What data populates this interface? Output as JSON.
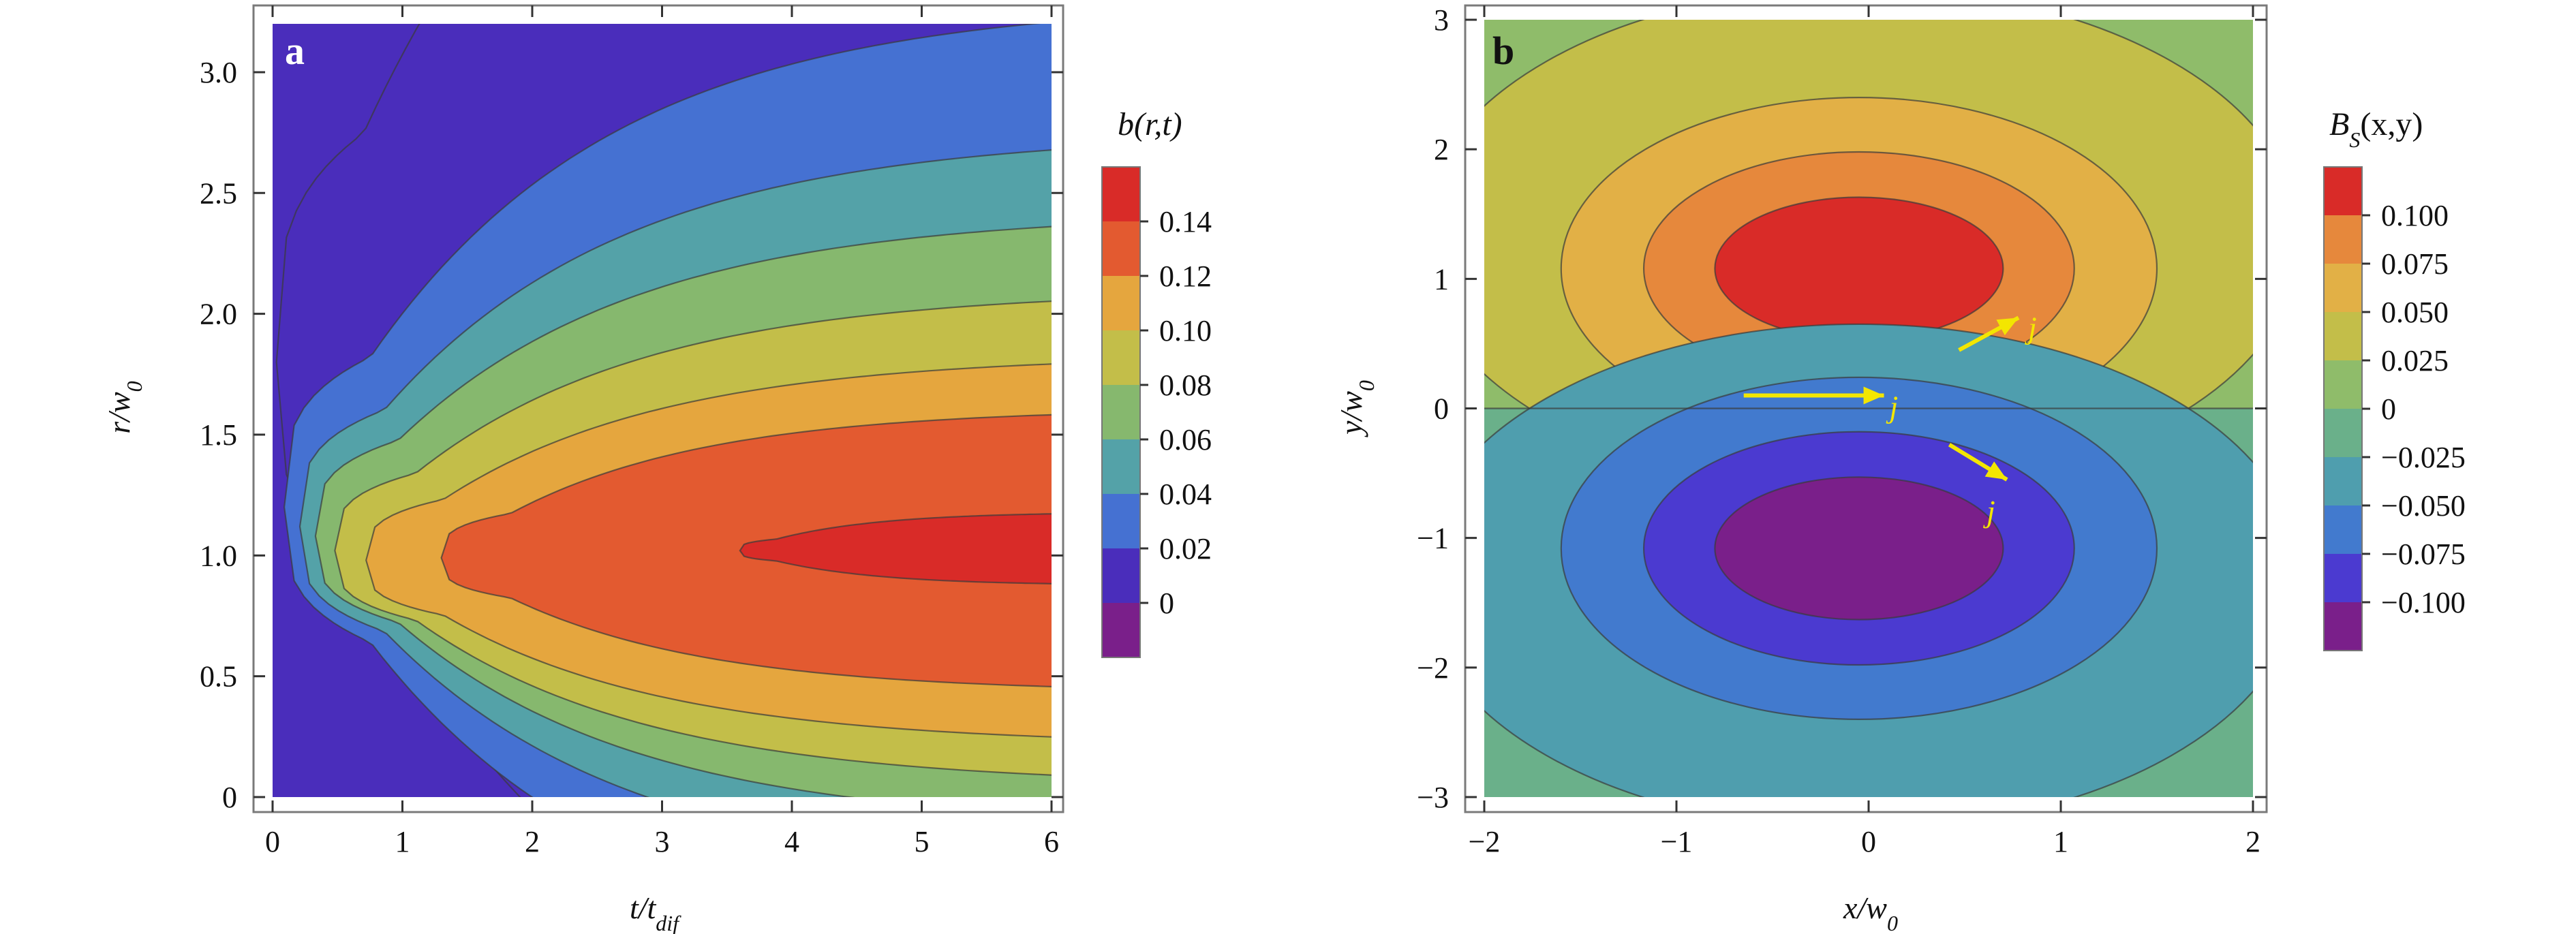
{
  "chart_data": [
    {
      "type": "contour",
      "panel_label": "a",
      "xlabel": "t/t",
      "xlabel_sub": "dif",
      "ylabel": "r/w",
      "ylabel_sub": "0",
      "xlim": [
        0,
        6
      ],
      "ylim": [
        0,
        3.2
      ],
      "xticks": [
        "0",
        "1",
        "2",
        "3",
        "4",
        "5",
        "6"
      ],
      "xtick_values": [
        0,
        1,
        2,
        3,
        4,
        5,
        6
      ],
      "yticks": [
        "0",
        "0.5",
        "1.0",
        "1.5",
        "2.0",
        "2.5",
        "3.0"
      ],
      "ytick_values": [
        0,
        0.5,
        1.0,
        1.5,
        2.0,
        2.5,
        3.0
      ],
      "colorbar_title": "b(r,t)",
      "colorbar_labels": [
        "0.14",
        "0.12",
        "0.10",
        "0.08",
        "0.06",
        "0.04",
        "0.02",
        "0"
      ],
      "colorbar_colors": [
        "#d92b28",
        "#e35a30",
        "#e5a63e",
        "#c3be49",
        "#86b86e",
        "#54a2a8",
        "#4571d2",
        "#4a2dbb",
        "#7a1f8a"
      ],
      "function": "b(r,t) peaks ~0.15 near r/w0 = 1, increasing with t",
      "boundaries": [
        {
          "level": 0.14,
          "r_center": 1.02,
          "half_width": 0.16,
          "t_start": 3.6
        },
        {
          "level": 0.12,
          "r_center": 0.99,
          "half_width": 0.62,
          "t_start": 1.3
        },
        {
          "level": 0.1,
          "r_center": 0.98,
          "half_width": 0.85,
          "t_start": 0.72
        },
        {
          "level": 0.08,
          "r_center": 1.02,
          "half_width": 1.08,
          "t_start": 0.48
        },
        {
          "level": 0.06,
          "r_center": 1.08,
          "half_width": 1.34,
          "t_start": 0.33
        },
        {
          "level": 0.04,
          "r_center": 1.12,
          "half_width": 1.63,
          "t_start": 0.21
        },
        {
          "level": 0.02,
          "r_center": 1.2,
          "half_width": 2.1,
          "t_start": 0.09
        },
        {
          "level": 0.0,
          "r_center": 1.8,
          "half_width": 3.2,
          "t_start": 0.03
        }
      ]
    },
    {
      "type": "contour",
      "panel_label": "b",
      "xlabel": "x/w",
      "xlabel_sub": "0",
      "ylabel": "y/w",
      "ylabel_sub": "0",
      "xlim": [
        -2,
        2
      ],
      "ylim": [
        -3,
        3
      ],
      "xticks": [
        "−2",
        "−1",
        "0",
        "1",
        "2"
      ],
      "xtick_values": [
        -2,
        -1,
        0,
        1,
        2
      ],
      "yticks": [
        "−3",
        "−2",
        "−1",
        "0",
        "1",
        "2",
        "3"
      ],
      "ytick_values": [
        -3,
        -2,
        -1,
        0,
        1,
        2,
        3
      ],
      "colorbar_title": "B",
      "colorbar_title_sub": "S",
      "colorbar_title_args": "(x,y)",
      "colorbar_labels": [
        "0.100",
        "0.075",
        "0.050",
        "0.025",
        "0",
        "−0.025",
        "−0.050",
        "−0.075",
        "−0.100"
      ],
      "colorbar_colors": [
        "#d92b28",
        "#e6883c",
        "#e2b046",
        "#c3be49",
        "#8fbc6a",
        "#6ab08a",
        "#4f9eae",
        "#427ace",
        "#4b3ad0",
        "#7a1f8a"
      ],
      "contours": [
        {
          "level": 0.1,
          "cx": -0.05,
          "cy": 1.08,
          "rx": 0.75,
          "ry": 0.55
        },
        {
          "level": 0.075,
          "cx": -0.05,
          "cy": 1.08,
          "rx": 1.12,
          "ry": 0.9
        },
        {
          "level": 0.05,
          "cx": -0.05,
          "cy": 1.08,
          "rx": 1.55,
          "ry": 1.32
        },
        {
          "level": 0.025,
          "cx": -0.05,
          "cy": 1.3,
          "rx": 2.3,
          "ry": 1.95
        },
        {
          "level": -0.025,
          "cx": -0.05,
          "cy": -1.3,
          "rx": 2.3,
          "ry": 1.95
        },
        {
          "level": -0.05,
          "cx": -0.05,
          "cy": -1.08,
          "rx": 1.55,
          "ry": 1.32
        },
        {
          "level": -0.075,
          "cx": -0.05,
          "cy": -1.08,
          "rx": 1.12,
          "ry": 0.9
        },
        {
          "level": -0.1,
          "cx": -0.05,
          "cy": -1.08,
          "rx": 0.75,
          "ry": 0.55
        }
      ],
      "arrows": [
        {
          "label": "j",
          "from": [
            -0.65,
            0.1
          ],
          "to": [
            0.08,
            0.1
          ]
        },
        {
          "label": "j",
          "from": [
            0.47,
            0.45
          ],
          "to": [
            0.78,
            0.7
          ]
        },
        {
          "label": "j",
          "from": [
            0.42,
            -0.28
          ],
          "to": [
            0.72,
            -0.55
          ]
        }
      ]
    }
  ]
}
